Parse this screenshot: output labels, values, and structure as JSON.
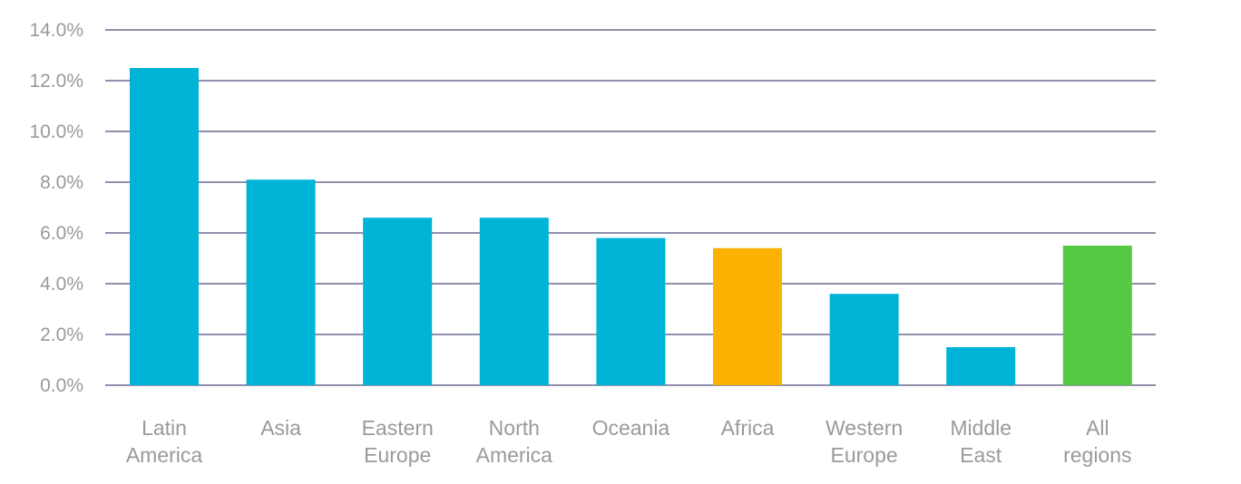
{
  "chart_data": {
    "type": "bar",
    "categories": [
      [
        "Latin",
        "America"
      ],
      [
        "Asia"
      ],
      [
        "Eastern",
        "Europe"
      ],
      [
        "North",
        "America"
      ],
      [
        "Oceania"
      ],
      [
        "Africa"
      ],
      [
        "Western",
        "Europe"
      ],
      [
        "Middle",
        "East"
      ],
      [
        "All",
        "regions"
      ]
    ],
    "values": [
      12.5,
      8.1,
      6.6,
      6.6,
      5.8,
      5.4,
      3.6,
      1.5,
      5.5
    ],
    "colors": [
      "#00b4d8",
      "#00b4d8",
      "#00b4d8",
      "#00b4d8",
      "#00b4d8",
      "#fcb200",
      "#00b4d8",
      "#00b4d8",
      "#56c943"
    ],
    "ylim": [
      0,
      14
    ],
    "yticks": [
      0,
      2,
      4,
      6,
      8,
      10,
      12,
      14
    ],
    "ytick_labels": [
      "0.0%",
      "2.0%",
      "4.0%",
      "6.0%",
      "8.0%",
      "10.0%",
      "12.0%",
      "14.0%"
    ],
    "grid": true,
    "title": "",
    "xlabel": "",
    "ylabel": ""
  }
}
